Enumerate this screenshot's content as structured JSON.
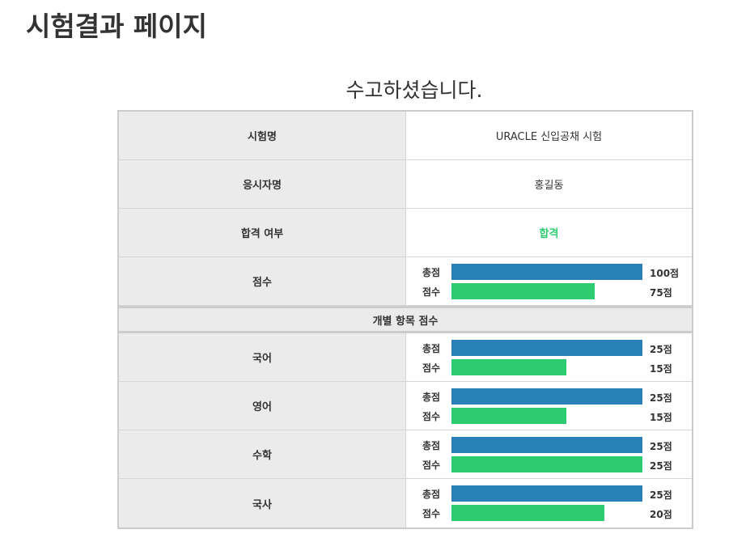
{
  "page": {
    "title": "시험결과 페이지",
    "greeting": "수고하셨습니다."
  },
  "info": {
    "exam_name_label": "시험명",
    "exam_name": "URACLE 신입공채 시험",
    "candidate_label": "응시자명",
    "candidate_name": "홍길동",
    "pass_label": "합격 여부",
    "pass_status": "합격",
    "score_label": "점수"
  },
  "bar_labels": {
    "total": "총점",
    "score": "점수"
  },
  "overall": {
    "total": 100,
    "score": 75,
    "total_text": "100점",
    "score_text": "75점"
  },
  "section_title": "개별 항목 점수",
  "subjects": [
    {
      "name": "국어",
      "total": 25,
      "score": 15,
      "total_text": "25점",
      "score_text": "15점"
    },
    {
      "name": "영어",
      "total": 25,
      "score": 15,
      "total_text": "25점",
      "score_text": "15점"
    },
    {
      "name": "수학",
      "total": 25,
      "score": 25,
      "total_text": "25점",
      "score_text": "25점"
    },
    {
      "name": "국사",
      "total": 25,
      "score": 20,
      "total_text": "25점",
      "score_text": "20점"
    }
  ],
  "colors": {
    "total_bar": "#2980b9",
    "score_bar": "#2ecc71",
    "pass_text": "#2ecc71"
  }
}
